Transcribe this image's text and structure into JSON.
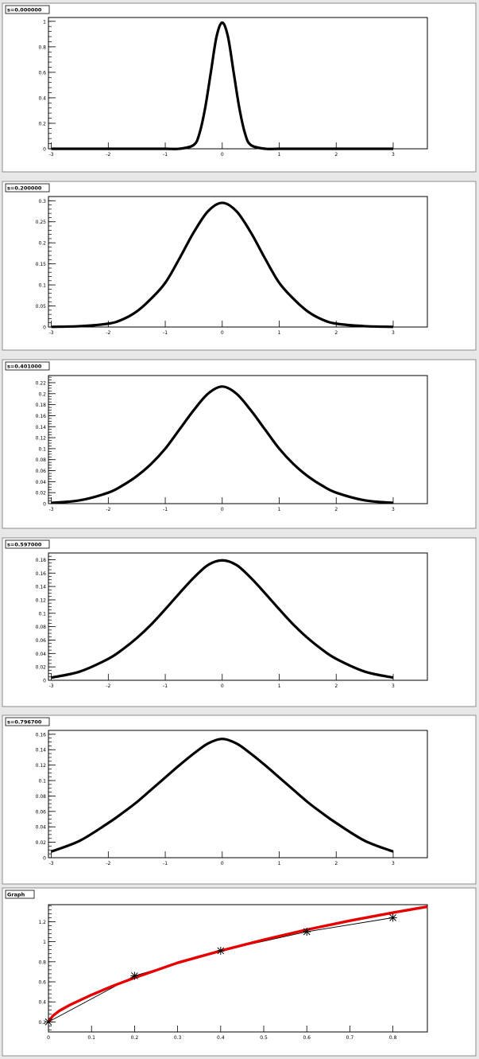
{
  "chart_data": [
    {
      "type": "line",
      "title": "s=0.000000",
      "x": [
        -3,
        -2.5,
        -2,
        -1.5,
        -1,
        -0.75,
        -0.5,
        -0.4,
        -0.3,
        -0.2,
        -0.1,
        0,
        0.1,
        0.2,
        0.3,
        0.4,
        0.5,
        0.75,
        1,
        1.5,
        2,
        2.5,
        3
      ],
      "series": [
        {
          "values": [
            0,
            0,
            0,
            0,
            0,
            0.0003,
            0.03,
            0.12,
            0.32,
            0.6,
            0.88,
            0.99,
            0.88,
            0.6,
            0.32,
            0.12,
            0.03,
            0.0003,
            0,
            0,
            0,
            0,
            0
          ]
        }
      ],
      "xlim": [
        -3.05,
        3.6
      ],
      "ylim": [
        0,
        1.03
      ],
      "xticks": [
        -3,
        -2,
        -1,
        0,
        1,
        2,
        3
      ],
      "xtick_labels": [
        "-3",
        "-2",
        "-1",
        "0",
        "1",
        "2",
        "3"
      ],
      "yticks": [
        0,
        0.2,
        0.4,
        0.6,
        0.8,
        1
      ],
      "ytick_labels": [
        "0",
        "0.2",
        "0.4",
        "0.6",
        "0.8",
        "1"
      ],
      "ytick_minor": 0.04
    },
    {
      "type": "line",
      "title": "s=0.200000",
      "x": [
        -3,
        -2.5,
        -2,
        -1.75,
        -1.5,
        -1.25,
        -1,
        -0.75,
        -0.5,
        -0.25,
        0,
        0.25,
        0.5,
        0.75,
        1,
        1.25,
        1.5,
        1.75,
        2,
        2.5,
        3
      ],
      "series": [
        {
          "values": [
            0.0004,
            0.002,
            0.008,
            0.018,
            0.037,
            0.067,
            0.105,
            0.163,
            0.225,
            0.275,
            0.295,
            0.275,
            0.225,
            0.163,
            0.105,
            0.067,
            0.037,
            0.018,
            0.008,
            0.002,
            0.0004
          ]
        }
      ],
      "xlim": [
        -3.05,
        3.6
      ],
      "ylim": [
        0,
        0.31
      ],
      "xticks": [
        -3,
        -2,
        -1,
        0,
        1,
        2,
        3
      ],
      "xtick_labels": [
        "-3",
        "-2",
        "-1",
        "0",
        "1",
        "2",
        "3"
      ],
      "yticks": [
        0,
        0.05,
        0.1,
        0.15,
        0.2,
        0.25,
        0.3
      ],
      "ytick_labels": [
        "0",
        "0.05",
        "0.1",
        "0.15",
        "0.2",
        "0.25",
        "0.3"
      ],
      "ytick_minor": 0.01
    },
    {
      "type": "line",
      "title": "s=0.401000",
      "x": [
        -3,
        -2.5,
        -2,
        -1.75,
        -1.5,
        -1.25,
        -1,
        -0.75,
        -0.5,
        -0.25,
        0,
        0.25,
        0.5,
        0.75,
        1,
        1.25,
        1.5,
        1.75,
        2,
        2.5,
        3
      ],
      "series": [
        {
          "values": [
            0.0014,
            0.006,
            0.02,
            0.033,
            0.05,
            0.072,
            0.1,
            0.135,
            0.17,
            0.2,
            0.213,
            0.2,
            0.17,
            0.135,
            0.1,
            0.072,
            0.05,
            0.033,
            0.02,
            0.006,
            0.0014
          ]
        }
      ],
      "xlim": [
        -3.05,
        3.6
      ],
      "ylim": [
        0,
        0.233
      ],
      "xticks": [
        -3,
        -2,
        -1,
        0,
        1,
        2,
        3
      ],
      "xtick_labels": [
        "-3",
        "-2",
        "-1",
        "0",
        "1",
        "2",
        "3"
      ],
      "yticks": [
        0,
        0.02,
        0.04,
        0.06,
        0.08,
        0.1,
        0.12,
        0.14,
        0.16,
        0.18,
        0.2,
        0.22
      ],
      "ytick_labels": [
        "0",
        "0.02",
        "0.04",
        "0.06",
        "0.08",
        "0.1",
        "0.12",
        "0.14",
        "0.16",
        "0.18",
        "0.2",
        "0.22"
      ],
      "ytick_minor": 0.005
    },
    {
      "type": "line",
      "title": "s=0.597000",
      "x": [
        -3,
        -2.5,
        -2,
        -1.75,
        -1.5,
        -1.25,
        -1,
        -0.75,
        -0.5,
        -0.25,
        0,
        0.25,
        0.5,
        0.75,
        1,
        1.25,
        1.5,
        1.75,
        2,
        2.5,
        3
      ],
      "series": [
        {
          "values": [
            0.004,
            0.013,
            0.032,
            0.046,
            0.063,
            0.083,
            0.106,
            0.13,
            0.153,
            0.172,
            0.179,
            0.172,
            0.153,
            0.13,
            0.106,
            0.083,
            0.063,
            0.046,
            0.032,
            0.013,
            0.004
          ]
        }
      ],
      "xlim": [
        -3.05,
        3.6
      ],
      "ylim": [
        0,
        0.19
      ],
      "xticks": [
        -3,
        -2,
        -1,
        0,
        1,
        2,
        3
      ],
      "xtick_labels": [
        "-3",
        "-2",
        "-1",
        "0",
        "1",
        "2",
        "3"
      ],
      "yticks": [
        0,
        0.02,
        0.04,
        0.06,
        0.08,
        0.1,
        0.12,
        0.14,
        0.16,
        0.18
      ],
      "ytick_labels": [
        "0",
        "0.02",
        "0.04",
        "0.06",
        "0.08",
        "0.1",
        "0.12",
        "0.14",
        "0.16",
        "0.18"
      ],
      "ytick_minor": 0.005
    },
    {
      "type": "line",
      "title": "s=0.796700",
      "x": [
        -3,
        -2.5,
        -2,
        -1.75,
        -1.5,
        -1.25,
        -1,
        -0.75,
        -0.5,
        -0.25,
        0,
        0.25,
        0.5,
        0.75,
        1,
        1.25,
        1.5,
        1.75,
        2,
        2.5,
        3
      ],
      "series": [
        {
          "values": [
            0.008,
            0.022,
            0.045,
            0.058,
            0.072,
            0.088,
            0.104,
            0.12,
            0.135,
            0.148,
            0.154,
            0.148,
            0.135,
            0.12,
            0.104,
            0.088,
            0.072,
            0.058,
            0.045,
            0.022,
            0.008
          ]
        }
      ],
      "xlim": [
        -3.05,
        3.6
      ],
      "ylim": [
        0,
        0.165
      ],
      "xticks": [
        -3,
        -2,
        -1,
        0,
        1,
        2,
        3
      ],
      "xtick_labels": [
        "-3",
        "-2",
        "-1",
        "0",
        "1",
        "2",
        "3"
      ],
      "yticks": [
        0,
        0.02,
        0.04,
        0.06,
        0.08,
        0.1,
        0.12,
        0.14,
        0.16
      ],
      "ytick_labels": [
        "0",
        "0.02",
        "0.04",
        "0.06",
        "0.08",
        "0.1",
        "0.12",
        "0.14",
        "0.16"
      ],
      "ytick_minor": 0.005
    },
    {
      "type": "scatter",
      "title": "Graph",
      "points": {
        "x": [
          0,
          0.2,
          0.4,
          0.6,
          0.8
        ],
        "y": [
          0.2,
          0.66,
          0.91,
          1.1,
          1.24
        ]
      },
      "fit": {
        "color": "#e60000",
        "x": [
          0,
          0.01,
          0.025,
          0.05,
          0.1,
          0.15,
          0.2,
          0.3,
          0.4,
          0.5,
          0.6,
          0.7,
          0.8,
          0.88
        ],
        "y": [
          0.2,
          0.26,
          0.31,
          0.37,
          0.47,
          0.56,
          0.64,
          0.79,
          0.91,
          1.02,
          1.12,
          1.21,
          1.29,
          1.35
        ]
      },
      "xlim": [
        0,
        0.88
      ],
      "ylim": [
        0.1,
        1.37
      ],
      "xticks": [
        0,
        0.1,
        0.2,
        0.3,
        0.4,
        0.5,
        0.6,
        0.7,
        0.8
      ],
      "xtick_labels": [
        "0",
        "0.1",
        "0.2",
        "0.3",
        "0.4",
        "0.5",
        "0.6",
        "0.7",
        "0.8"
      ],
      "yticks": [
        0.2,
        0.4,
        0.6,
        0.8,
        1,
        1.2
      ],
      "ytick_labels": [
        "0.2",
        "0.4",
        "0.6",
        "0.8",
        "1",
        "1.2"
      ],
      "ytick_minor": 0.04
    }
  ]
}
